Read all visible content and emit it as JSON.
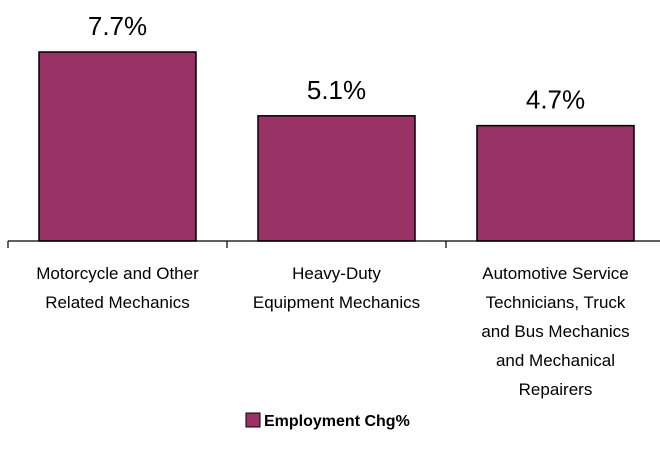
{
  "chart_data": {
    "type": "bar",
    "categories": [
      [
        "Motorcycle and Other",
        "Related Mechanics"
      ],
      [
        "Heavy-Duty",
        "Equipment Mechanics"
      ],
      [
        "Automotive Service",
        "Technicians, Truck",
        "and Bus Mechanics",
        "and Mechanical",
        "Repairers"
      ]
    ],
    "series": [
      {
        "name": "Employment Chg%",
        "values": [
          7.7,
          5.1,
          4.7
        ],
        "value_labels": [
          "7.7%",
          "5.1%",
          "4.7%"
        ],
        "color": "#993366",
        "border_color": "#000000"
      }
    ],
    "ylim": [
      0,
      7.7
    ],
    "grid": false,
    "legend": "bottom"
  }
}
